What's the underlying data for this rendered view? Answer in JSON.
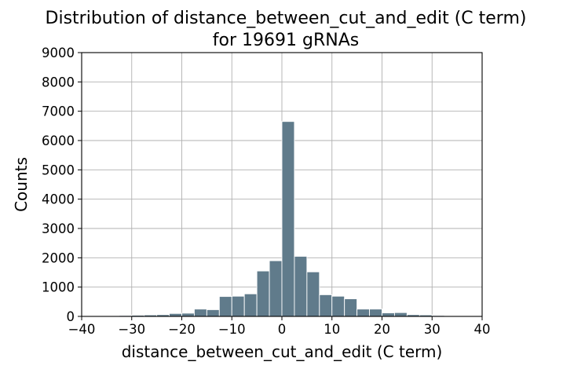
{
  "chart_data": {
    "type": "bar",
    "title_line1": "Distribution of distance_between_cut_and_edit (C term)",
    "title_line2": "for 19691 gRNAs",
    "xlabel": "distance_between_cut_and_edit (C term)",
    "ylabel": "Counts",
    "xlim": [
      -40,
      40
    ],
    "ylim": [
      0,
      9000
    ],
    "xticks": [
      -40,
      -30,
      -20,
      -10,
      0,
      10,
      20,
      30,
      40
    ],
    "yticks": [
      0,
      1000,
      2000,
      3000,
      4000,
      5000,
      6000,
      7000,
      8000,
      9000
    ],
    "xtick_labels": [
      "−40",
      "−30",
      "−20",
      "−10",
      "0",
      "10",
      "20",
      "30",
      "40"
    ],
    "ytick_labels": [
      "0",
      "1000",
      "2000",
      "3000",
      "4000",
      "5000",
      "6000",
      "7000",
      "8000",
      "9000"
    ],
    "grid": true,
    "bar_color": "#607b8b",
    "bins": [
      {
        "x0": -40,
        "x1": -37.5,
        "count": 15
      },
      {
        "x0": -37.5,
        "x1": -35,
        "count": 20
      },
      {
        "x0": -35,
        "x1": -32.5,
        "count": 25
      },
      {
        "x0": -32.5,
        "x1": -30,
        "count": 30
      },
      {
        "x0": -30,
        "x1": -27.5,
        "count": 40
      },
      {
        "x0": -27.5,
        "x1": -25,
        "count": 50
      },
      {
        "x0": -25,
        "x1": -22.5,
        "count": 60
      },
      {
        "x0": -22.5,
        "x1": -20,
        "count": 100
      },
      {
        "x0": -20,
        "x1": -17.5,
        "count": 110
      },
      {
        "x0": -17.5,
        "x1": -15,
        "count": 250
      },
      {
        "x0": -15,
        "x1": -12.5,
        "count": 230
      },
      {
        "x0": -12.5,
        "x1": -10,
        "count": 680
      },
      {
        "x0": -10,
        "x1": -7.5,
        "count": 690
      },
      {
        "x0": -7.5,
        "x1": -5,
        "count": 770
      },
      {
        "x0": -5,
        "x1": -2.5,
        "count": 1550
      },
      {
        "x0": -2.5,
        "x1": 0,
        "count": 1900
      },
      {
        "x0": 0,
        "x1": 2.5,
        "count": 6650
      },
      {
        "x0": 2.5,
        "x1": 5,
        "count": 2050
      },
      {
        "x0": 5,
        "x1": 7.5,
        "count": 1520
      },
      {
        "x0": 7.5,
        "x1": 10,
        "count": 740
      },
      {
        "x0": 10,
        "x1": 12.5,
        "count": 690
      },
      {
        "x0": 12.5,
        "x1": 15,
        "count": 600
      },
      {
        "x0": 15,
        "x1": 17.5,
        "count": 250
      },
      {
        "x0": 17.5,
        "x1": 20,
        "count": 250
      },
      {
        "x0": 20,
        "x1": 22.5,
        "count": 120
      },
      {
        "x0": 22.5,
        "x1": 25,
        "count": 130
      },
      {
        "x0": 25,
        "x1": 27.5,
        "count": 60
      },
      {
        "x0": 27.5,
        "x1": 30,
        "count": 50
      },
      {
        "x0": 30,
        "x1": 32.5,
        "count": 30
      },
      {
        "x0": 32.5,
        "x1": 35,
        "count": 25
      },
      {
        "x0": 35,
        "x1": 37.5,
        "count": 20
      },
      {
        "x0": 37.5,
        "x1": 40,
        "count": 15
      }
    ]
  }
}
